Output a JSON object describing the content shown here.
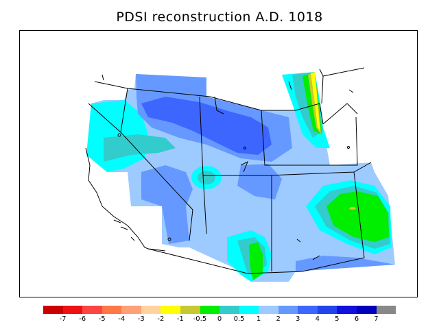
{
  "title": "PDSI reconstruction A.D. 1018",
  "legend": {
    "colors": [
      "#cc0000",
      "#ee1111",
      "#ff4444",
      "#ff7744",
      "#ffa077",
      "#ffd3a0",
      "#ffff00",
      "#c8c832",
      "#00ee00",
      "#33cccc",
      "#00ffff",
      "#9dcaff",
      "#6699ff",
      "#3d66ff",
      "#2244ee",
      "#1111dd",
      "#0000bb",
      "#888888"
    ],
    "labels": [
      "-7",
      "-6",
      "-5",
      "-4",
      "-3",
      "-2",
      "-1",
      "-0.5",
      "0",
      "0.5",
      "1",
      "2",
      "3",
      "4",
      "5",
      "6",
      "7"
    ]
  },
  "palette": {
    "light_blue": "#9dcaff",
    "mid_blue": "#6699ff",
    "deep_blue": "#3d66ff",
    "teal": "#33cccc",
    "cyan": "#00ffff",
    "green": "#00ee00",
    "olive": "#c8c832",
    "yellow": "#ffff00"
  }
}
